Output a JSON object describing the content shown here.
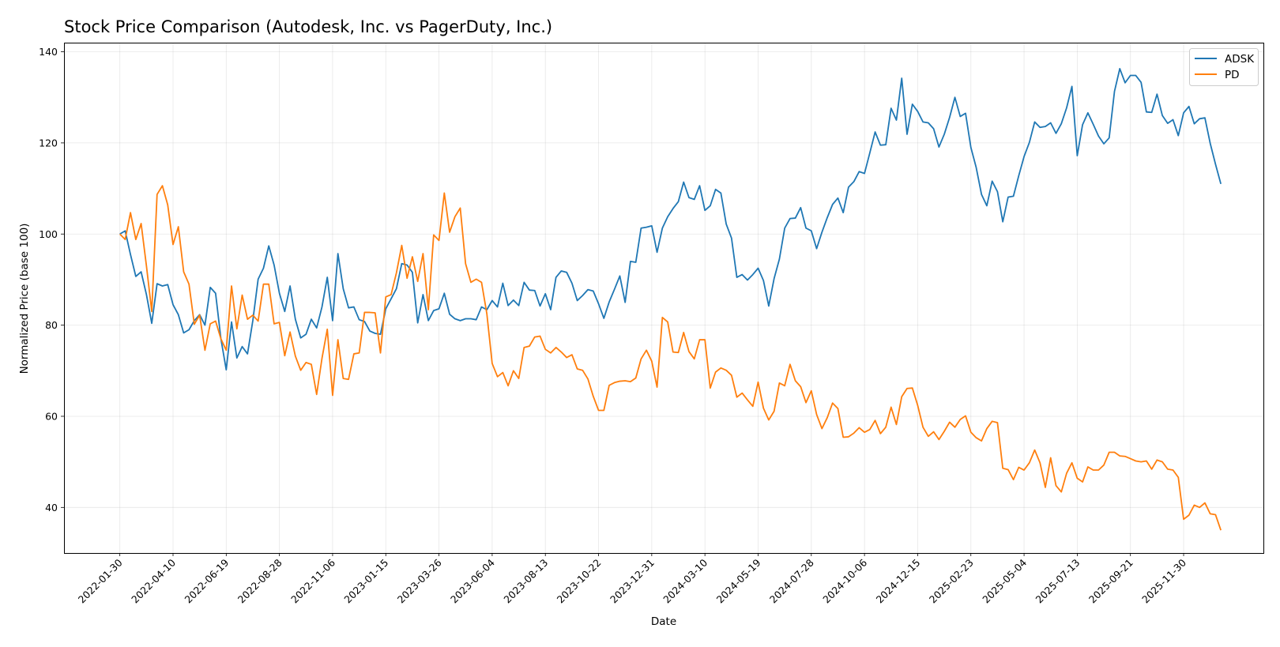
{
  "chart_data": {
    "type": "line",
    "title": "Stock Price Comparison (Autodesk, Inc. vs PagerDuty, Inc.)",
    "xlabel": "Date",
    "ylabel": "Normalized Price (base 100)",
    "ylim": [
      30,
      142
    ],
    "yticks": [
      40,
      60,
      80,
      100,
      120,
      140
    ],
    "xticks": [
      "2022-01-30",
      "2022-04-10",
      "2022-06-19",
      "2022-08-28",
      "2022-11-06",
      "2023-01-15",
      "2023-03-26",
      "2023-06-04",
      "2023-08-13",
      "2023-10-22",
      "2023-12-31",
      "2024-03-10",
      "2024-05-19",
      "2024-07-28",
      "2024-10-06",
      "2024-12-15",
      "2025-02-23",
      "2025-05-04",
      "2025-07-13",
      "2025-09-21",
      "2025-11-30"
    ],
    "x_start": "2022-01-30",
    "x_step_days": 7,
    "x_range_weeks": [
      -10.5,
      215
    ],
    "grid": true,
    "legend": "top-right",
    "series": [
      {
        "name": "ADSK",
        "color": "#1f77b4",
        "values": [
          100.0,
          100.7,
          95.5,
          90.7,
          91.7,
          86.7,
          80.4,
          89.1,
          88.6,
          88.9,
          84.5,
          82.3,
          78.3,
          79.0,
          81.0,
          82.3,
          80.0,
          88.3,
          87.0,
          77.0,
          70.2,
          80.7,
          72.8,
          75.3,
          73.7,
          81.0,
          90.1,
          92.5,
          97.4,
          93.2,
          87.0,
          83.0,
          88.6,
          81.3,
          77.2,
          78.0,
          81.3,
          79.4,
          84.0,
          90.5,
          81.0,
          95.7,
          88.0,
          83.8,
          84.0,
          81.2,
          80.8,
          78.7,
          78.2,
          78.0,
          83.6,
          85.8,
          88.0,
          93.5,
          93.2,
          91.6,
          80.5,
          86.7,
          81.0,
          83.2,
          83.6,
          87.0,
          82.4,
          81.4,
          81.0,
          81.4,
          81.4,
          81.2,
          84.0,
          83.4,
          85.4,
          84.0,
          89.2,
          84.3,
          85.5,
          84.3,
          89.4,
          87.7,
          87.6,
          84.2,
          86.9,
          83.4,
          90.5,
          91.9,
          91.6,
          89.2,
          85.4,
          86.5,
          87.8,
          87.5,
          84.7,
          81.5,
          85.1,
          87.9,
          90.8,
          85.0,
          94.0,
          93.8,
          101.3,
          101.5,
          101.8,
          96.0,
          101.3,
          103.8,
          105.6,
          107.1,
          111.4,
          108.0,
          107.6,
          110.6,
          105.2,
          106.2,
          109.8,
          109.0,
          102.2,
          99.1,
          90.5,
          91.1,
          89.9,
          91.1,
          92.5,
          89.8,
          84.2,
          90.2,
          94.5,
          101.3,
          103.4,
          103.5,
          105.8,
          101.3,
          100.7,
          96.8,
          100.4,
          103.6,
          106.5,
          107.9,
          104.7,
          110.3,
          111.5,
          113.7,
          113.3,
          117.8,
          122.4,
          119.5,
          119.6,
          127.6,
          125.0,
          134.2,
          121.9,
          128.5,
          126.9,
          124.6,
          124.4,
          123.1,
          119.1,
          121.9,
          125.6,
          130.0,
          125.8,
          126.5,
          119.0,
          114.6,
          108.7,
          106.2,
          111.6,
          109.3,
          102.7,
          108.1,
          108.3,
          112.8,
          117.0,
          120.1,
          124.6,
          123.4,
          123.6,
          124.4,
          122.1,
          124.2,
          127.7,
          132.4,
          117.2,
          124.0,
          126.6,
          124.1,
          121.5,
          119.8,
          121.1,
          131.3,
          136.3,
          133.2,
          134.8,
          134.8,
          133.3,
          126.8,
          126.7,
          130.7,
          126.0,
          124.3,
          125.1,
          121.6,
          126.6,
          128.0,
          124.2,
          125.3,
          125.5,
          119.9,
          115.3,
          111.0
        ]
      },
      {
        "name": "PD",
        "color": "#ff7f0e",
        "values": [
          100.0,
          98.8,
          104.7,
          98.8,
          102.3,
          93.0,
          83.0,
          108.7,
          110.6,
          106.4,
          97.7,
          101.6,
          91.7,
          89.0,
          80.2,
          82.2,
          74.5,
          80.3,
          80.9,
          77.0,
          74.5,
          88.6,
          79.2,
          86.6,
          81.3,
          82.2,
          80.9,
          89.0,
          89.0,
          80.3,
          80.6,
          73.3,
          78.5,
          73.2,
          70.1,
          71.8,
          71.4,
          64.8,
          72.7,
          79.1,
          64.6,
          76.8,
          68.3,
          68.1,
          73.7,
          73.9,
          82.8,
          82.8,
          82.7,
          73.9,
          86.2,
          86.7,
          91.5,
          97.5,
          90.3,
          95.0,
          89.6,
          95.7,
          83.4,
          99.8,
          98.6,
          109.0,
          100.4,
          103.8,
          105.7,
          93.5,
          89.4,
          90.1,
          89.4,
          82.5,
          71.6,
          68.7,
          69.6,
          66.7,
          70.0,
          68.3,
          75.1,
          75.4,
          77.4,
          77.6,
          74.7,
          73.9,
          75.1,
          74.1,
          72.9,
          73.5,
          70.4,
          70.1,
          68.2,
          64.4,
          61.3,
          61.3,
          66.8,
          67.4,
          67.7,
          67.8,
          67.6,
          68.4,
          72.6,
          74.5,
          72.1,
          66.4,
          81.7,
          80.7,
          74.1,
          74.0,
          78.4,
          74.2,
          72.6,
          76.8,
          76.8,
          66.2,
          69.7,
          70.6,
          70.1,
          69.0,
          64.2,
          65.1,
          63.6,
          62.2,
          67.5,
          61.8,
          59.2,
          61.1,
          67.3,
          66.7,
          71.4,
          67.8,
          66.5,
          63.0,
          65.6,
          60.4,
          57.3,
          59.7,
          62.9,
          61.7,
          55.4,
          55.5,
          56.3,
          57.5,
          56.5,
          57.1,
          59.1,
          56.2,
          57.6,
          62.0,
          58.2,
          64.3,
          66.1,
          66.2,
          62.4,
          57.6,
          55.6,
          56.6,
          54.9,
          56.7,
          58.7,
          57.6,
          59.3,
          60.1,
          56.5,
          55.3,
          54.6,
          57.3,
          58.9,
          58.6,
          48.6,
          48.3,
          46.1,
          48.8,
          48.2,
          49.8,
          52.6,
          49.8,
          44.4,
          50.9,
          44.8,
          43.4,
          47.5,
          49.8,
          46.4,
          45.6,
          48.9,
          48.2,
          48.2,
          49.3,
          52.1,
          52.1,
          51.3,
          51.2,
          50.7,
          50.2,
          50.0,
          50.2,
          48.4,
          50.4,
          50.0,
          48.4,
          48.2,
          46.6,
          37.4,
          38.3,
          40.5,
          40.0,
          41.0,
          38.6,
          38.4,
          35.0
        ]
      }
    ]
  }
}
